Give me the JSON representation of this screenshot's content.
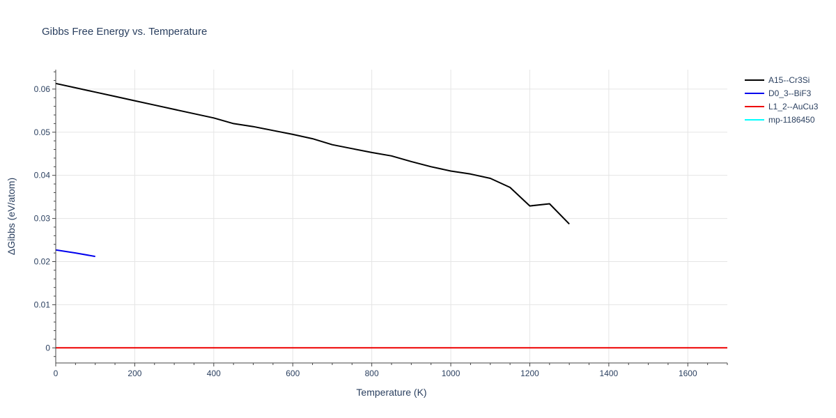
{
  "chart_data": {
    "type": "line",
    "title": "Gibbs Free Energy vs. Temperature",
    "xlabel": "Temperature (K)",
    "ylabel": "ΔGibbs (eV/atom)",
    "xlim": [
      0,
      1700
    ],
    "ylim": [
      -0.0035,
      0.0645
    ],
    "xticks": [
      0,
      200,
      400,
      600,
      800,
      1000,
      1200,
      1400,
      1600
    ],
    "yticks": [
      0,
      0.01,
      0.02,
      0.03,
      0.04,
      0.05,
      0.06
    ],
    "ytick_labels": [
      "0",
      "0.01",
      "0.02",
      "0.03",
      "0.04",
      "0.05",
      "0.06"
    ],
    "grid": true,
    "legend_position": "top-right, outside plot",
    "series": [
      {
        "name": "A15--Cr3Si",
        "color": "#000000",
        "x": [
          0,
          50,
          100,
          150,
          200,
          250,
          300,
          350,
          400,
          450,
          500,
          550,
          600,
          650,
          700,
          750,
          800,
          850,
          900,
          950,
          1000,
          1050,
          1100,
          1150,
          1200,
          1250,
          1300
        ],
        "y": [
          0.0613,
          0.0603,
          0.0593,
          0.0583,
          0.0573,
          0.0563,
          0.0553,
          0.0543,
          0.0533,
          0.052,
          0.0513,
          0.0504,
          0.0495,
          0.0485,
          0.0471,
          0.0462,
          0.0453,
          0.0445,
          0.0432,
          0.042,
          0.041,
          0.0403,
          0.0393,
          0.0372,
          0.0329,
          0.0334,
          0.0287
        ]
      },
      {
        "name": "D0_3--BiF3",
        "color": "#0000ee",
        "x": [
          0,
          50,
          100
        ],
        "y": [
          0.0227,
          0.022,
          0.0212
        ]
      },
      {
        "name": "L1_2--AuCu3",
        "color": "#ee0000",
        "x": [
          0,
          1700
        ],
        "y": [
          0,
          0
        ]
      },
      {
        "name": "mp-1186450",
        "color": "#00ffff",
        "x": [],
        "y": []
      }
    ]
  }
}
